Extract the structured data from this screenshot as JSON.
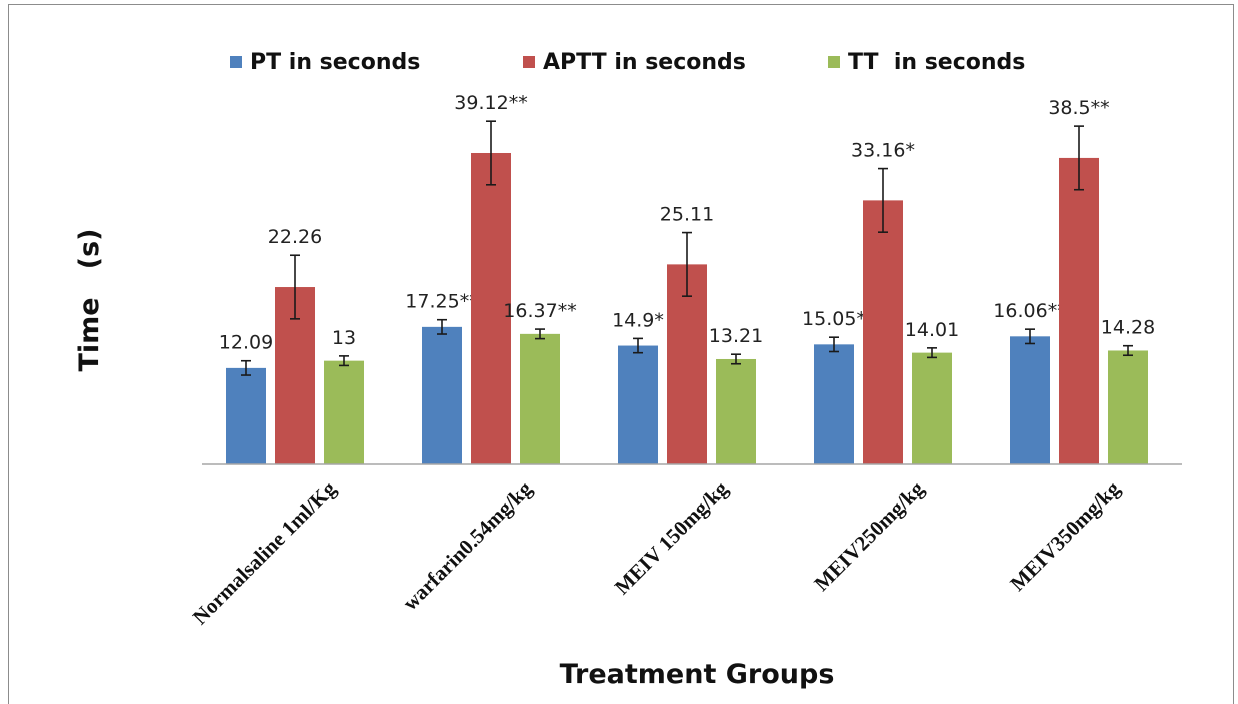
{
  "chart_data": {
    "type": "bar",
    "title": "",
    "xlabel": "Treatment Groups",
    "ylabel": "Time   (s)",
    "ylim": [
      0,
      45
    ],
    "grid": false,
    "legend_position": "top",
    "categories": [
      "Normalsaline 1ml/Kg",
      "warfarin0.54mg/kg",
      "MEIV 150mg/kg",
      "MEIV250mg/kg",
      "MEIV350mg/kg"
    ],
    "series": [
      {
        "name": "PT in seconds",
        "color": "#4F81BD",
        "values": [
          12.09,
          17.25,
          14.9,
          15.05,
          16.06
        ],
        "errors": [
          0.9,
          0.9,
          0.9,
          0.9,
          0.9
        ],
        "labels": [
          "12.09",
          "17.25**",
          "14.9*",
          "15.05*",
          "16.06**"
        ]
      },
      {
        "name": "APTT in seconds",
        "color": "#C0504D",
        "values": [
          22.26,
          39.12,
          25.11,
          33.16,
          38.5
        ],
        "errors": [
          4,
          4,
          4,
          4,
          4
        ],
        "labels": [
          "22.26",
          "39.12**",
          "25.11",
          "33.16*",
          "38.5**"
        ]
      },
      {
        "name": "TT  in seconds",
        "color": "#9BBB59",
        "values": [
          13,
          16.37,
          13.21,
          14.01,
          14.28
        ],
        "errors": [
          0.6,
          0.6,
          0.6,
          0.6,
          0.6
        ],
        "labels": [
          "13",
          "16.37**",
          "13.21",
          "14.01",
          "14.28"
        ]
      }
    ]
  }
}
